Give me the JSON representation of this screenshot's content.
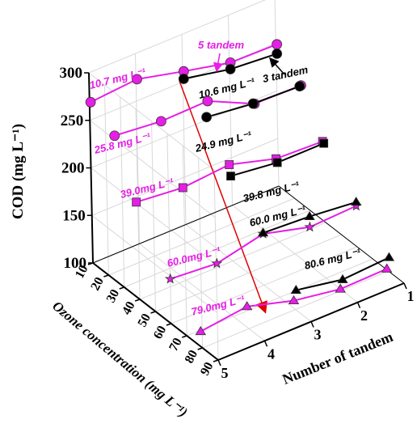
{
  "chart_data": {
    "type": "line3d",
    "x_label": "Number of tandem",
    "y_label": "Ozone concentration (mg L⁻¹)",
    "z_label": "COD (mg L⁻¹)",
    "x": [
      1,
      2,
      3,
      4,
      5
    ],
    "xlim": [
      1,
      5
    ],
    "xticks": [
      1,
      2,
      3,
      4,
      5
    ],
    "ylim": [
      10,
      90
    ],
    "yticks": [
      10,
      20,
      30,
      40,
      50,
      60,
      70,
      80,
      90
    ],
    "zlim": [
      100,
      300
    ],
    "zticks": [
      100,
      150,
      200,
      250,
      300
    ],
    "grid": true,
    "series": [
      {
        "label": "10.7 mg L⁻¹",
        "ozone": 10.7,
        "color": "#e61ee6",
        "marker": "circle",
        "values": [
          250,
          251,
          262,
          274,
          270
        ]
      },
      {
        "label": "10.6 mg L⁻¹",
        "ozone": 10.6,
        "color": "#000000",
        "marker": "circle",
        "values": [
          240,
          244,
          254,
          null,
          null
        ]
      },
      {
        "label": "25.8 mg L⁻¹",
        "ozone": 25.8,
        "color": "#e61ee6",
        "marker": "circle",
        "values": [
          226,
          227,
          250,
          249,
          254
        ]
      },
      {
        "label": "24.9 mg L⁻¹",
        "ozone": 24.9,
        "color": "#000000",
        "marker": "circle",
        "values": [
          224,
          226,
          232,
          null,
          null
        ]
      },
      {
        "label": "39.0mg L⁻¹",
        "ozone": 39.0,
        "color": "#e61ee6",
        "marker": "square",
        "values": [
          184,
          186,
          200,
          196,
          201
        ]
      },
      {
        "label": "39.8 mg L⁻¹",
        "ozone": 39.8,
        "color": "#000000",
        "marker": "square",
        "values": [
          183,
          183,
          189,
          null,
          null
        ]
      },
      {
        "label": "60.0mg L⁻¹",
        "ozone": 60.0,
        "color": "#e61ee6",
        "marker": "star",
        "values": [
          143,
          141,
          154,
          143,
          147
        ]
      },
      {
        "label": "60.0 mg L⁻¹",
        "ozone": 60.0,
        "color": "#000000",
        "marker": "triangle",
        "values": [
          147,
          152,
          155,
          null,
          null
        ]
      },
      {
        "label": "79.0mg L⁻¹",
        "ozone": 79.0,
        "color": "#e61ee6",
        "marker": "triangle",
        "values": [
          101,
          100,
          108,
          122,
          116
        ]
      },
      {
        "label": "80.6 mg L⁻¹",
        "ozone": 80.6,
        "color": "#000000",
        "marker": "triangle",
        "values": [
          115,
          112,
          121,
          null,
          null
        ]
      }
    ],
    "annotations": [
      {
        "text": "5 tandem",
        "color": "#e61ee6"
      },
      {
        "text": "3 tandem",
        "color": "#000000"
      }
    ]
  }
}
